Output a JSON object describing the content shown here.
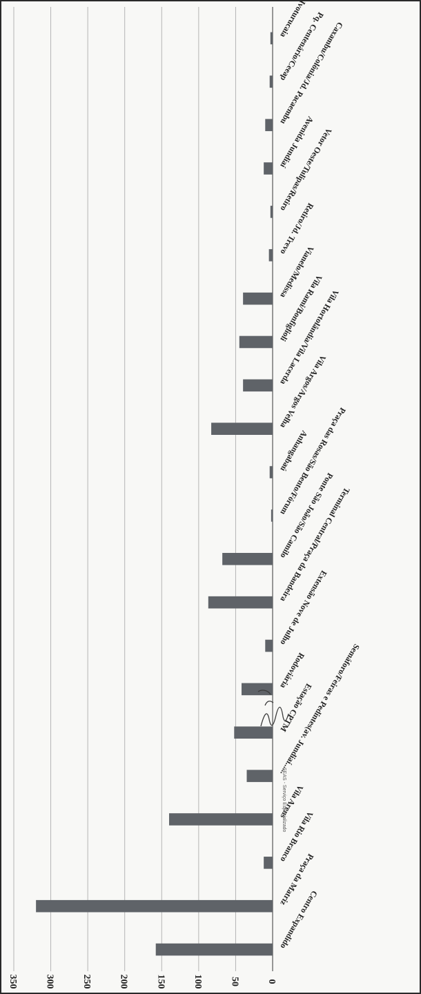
{
  "chart_data": {
    "type": "bar",
    "orientation": "rotated-90",
    "title": "",
    "xlabel": "",
    "ylabel": "",
    "ylim": [
      0,
      350
    ],
    "y_ticks": [
      0,
      50,
      100,
      150,
      200,
      250,
      300,
      350
    ],
    "grid": true,
    "bar_color": "#5f6368",
    "categories": [
      "Centro Expandido",
      "Praça da Matriz",
      "Vila Rio Branco",
      "Vila Arens",
      "Semáforo/Feiras e Pedintes(av. Jundiaí......",
      "Estação CPTM",
      "Rodoviária",
      "Extensão Nove de Julho",
      "Terminal Central/Praça da Bandeira",
      "Ponte São João/São Camilo",
      "Praça das Rosas/São Bento/Fórum",
      "Anhangabaú",
      "Vila Argos/Argos Velha",
      "Vila Hortolândia/Vila Lacerda",
      "Vila Rami/Bonfiglioli",
      "Vianelo/Medissa",
      "Retiro/Jd. Trevo",
      "Vetor Oeste/Tulipas/Retiro",
      "Avenida Jundiaí",
      "Caxambu/Colônia/Jd. Pacaembu",
      "Pq. Centenário/Ceeap",
      "Ivoturucaia"
    ],
    "values": [
      158,
      320,
      12,
      140,
      35,
      52,
      42,
      10,
      87,
      68,
      2,
      4,
      83,
      40,
      45,
      40,
      5,
      3,
      12,
      10,
      4,
      3
    ]
  },
  "stamp": {
    "signature_text": "SEAS - Serviço Especializado"
  }
}
